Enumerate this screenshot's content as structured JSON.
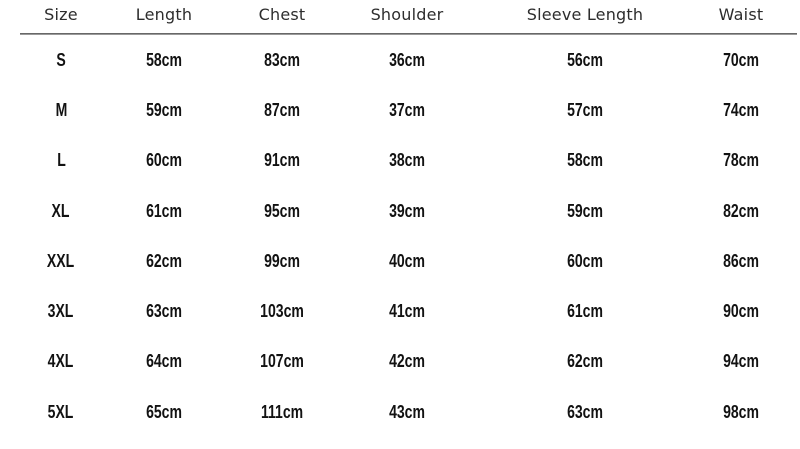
{
  "table": {
    "columns": [
      "Size",
      "Length",
      "Chest",
      "Shoulder",
      "Sleeve Length",
      "Waist"
    ],
    "rows": [
      [
        "S",
        "58cm",
        "83cm",
        "36cm",
        "56cm",
        "70cm"
      ],
      [
        "M",
        "59cm",
        "87cm",
        "37cm",
        "57cm",
        "74cm"
      ],
      [
        "L",
        "60cm",
        "91cm",
        "38cm",
        "58cm",
        "78cm"
      ],
      [
        "XL",
        "61cm",
        "95cm",
        "39cm",
        "59cm",
        "82cm"
      ],
      [
        "XXL",
        "62cm",
        "99cm",
        "40cm",
        "60cm",
        "86cm"
      ],
      [
        "3XL",
        "63cm",
        "103cm",
        "41cm",
        "61cm",
        "90cm"
      ],
      [
        "4XL",
        "64cm",
        "107cm",
        "42cm",
        "62cm",
        "94cm"
      ],
      [
        "5XL",
        "65cm",
        "111cm",
        "43cm",
        "63cm",
        "98cm"
      ]
    ]
  },
  "chart_data": {
    "type": "table",
    "columns": [
      "Size",
      "Length",
      "Chest",
      "Shoulder",
      "Sleeve Length",
      "Waist"
    ],
    "rows": [
      [
        "S",
        "58cm",
        "83cm",
        "36cm",
        "56cm",
        "70cm"
      ],
      [
        "M",
        "59cm",
        "87cm",
        "37cm",
        "57cm",
        "74cm"
      ],
      [
        "L",
        "60cm",
        "91cm",
        "38cm",
        "58cm",
        "78cm"
      ],
      [
        "XL",
        "61cm",
        "95cm",
        "39cm",
        "59cm",
        "82cm"
      ],
      [
        "XXL",
        "62cm",
        "99cm",
        "40cm",
        "60cm",
        "86cm"
      ],
      [
        "3XL",
        "63cm",
        "103cm",
        "41cm",
        "61cm",
        "90cm"
      ],
      [
        "4XL",
        "64cm",
        "107cm",
        "42cm",
        "62cm",
        "94cm"
      ],
      [
        "5XL",
        "65cm",
        "111cm",
        "43cm",
        "63cm",
        "98cm"
      ]
    ]
  },
  "colors": {
    "background": "#ffffff",
    "header_text": "#2d2d2d",
    "body_text": "#121212",
    "divider_top": "#4f4f4f",
    "divider_bottom": "#b3b3b3"
  }
}
